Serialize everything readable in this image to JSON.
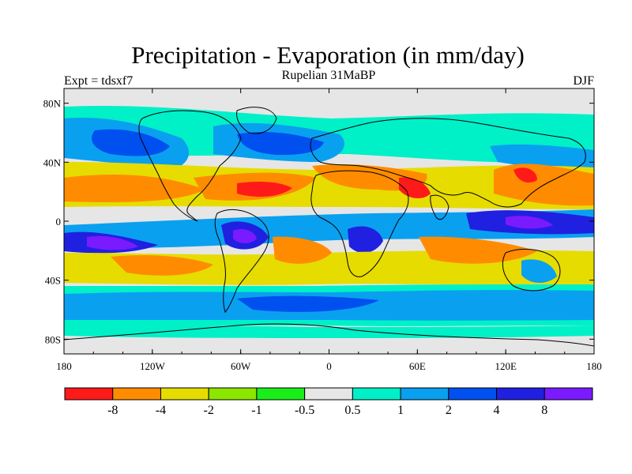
{
  "title": "Precipitation - Evaporation (in mm/day)",
  "subtitle": "Rupelian  31MaBP",
  "experiment_label": "Expt = tdsxf7",
  "season_label": "DJF",
  "map": {
    "x_ticks": [
      {
        "lon": -180,
        "label": "180"
      },
      {
        "lon": -120,
        "label": "120W"
      },
      {
        "lon": -60,
        "label": "60W"
      },
      {
        "lon": 0,
        "label": "0"
      },
      {
        "lon": 60,
        "label": "60E"
      },
      {
        "lon": 120,
        "label": "120E"
      },
      {
        "lon": 180,
        "label": "180"
      }
    ],
    "y_ticks": [
      {
        "lat": 80,
        "label": "80N"
      },
      {
        "lat": 40,
        "label": "40N"
      },
      {
        "lat": 0,
        "label": "0"
      },
      {
        "lat": -40,
        "label": "40S"
      },
      {
        "lat": -80,
        "label": "80S"
      }
    ],
    "lat_range": [
      -90,
      90
    ],
    "lon_range": [
      -180,
      180
    ]
  },
  "colorbar": {
    "colors": [
      "#ff1a1a",
      "#ff8c00",
      "#e6dc00",
      "#8ce600",
      "#1aee1a",
      "#e6e6e6",
      "#00f0c8",
      "#0aa0f0",
      "#0050f0",
      "#2020e0",
      "#7a1aff"
    ],
    "labels": [
      "-8",
      "-4",
      "-2",
      "-1",
      "-0.5",
      "0.5",
      "1",
      "2",
      "4",
      "8"
    ]
  },
  "palette": {
    "neutral": "#e6e6e6",
    "dry_strong": "#ff1a1a",
    "dry": "#ff8c00",
    "dry_mild": "#e6dc00",
    "wet": "#0aa0f0",
    "wet_strong": "#2020e0"
  }
}
